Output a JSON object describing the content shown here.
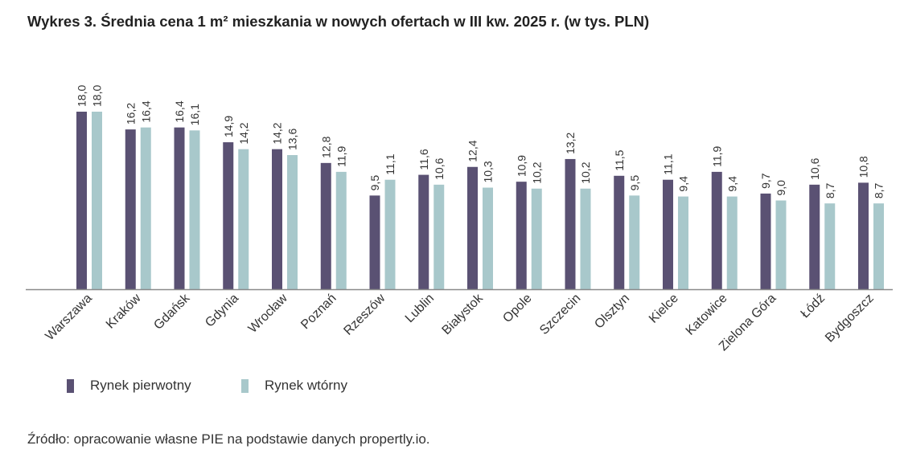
{
  "chart_data": {
    "type": "bar",
    "title": "Wykres 3.  Średnia cena 1 m² mieszkania w nowych ofertach w III kw. 2025 r. (w tys. PLN)",
    "source": "Źródło: opracowanie własne PIE na podstawie danych propertly.io.",
    "xlabel": "",
    "ylabel": "",
    "ylim": [
      0,
      18
    ],
    "grid": false,
    "legend_position": "bottom-left",
    "categories": [
      "Warszawa",
      "Kraków",
      "Gdańsk",
      "Gdynia",
      "Wrocław",
      "Poznań",
      "Rzeszów",
      "Lublin",
      "Białystok",
      "Opole",
      "Szczecin",
      "Olsztyn",
      "Kielce",
      "Katowice",
      "Zielona Góra",
      "Łódź",
      "Bydgoszcz"
    ],
    "series": [
      {
        "name": "Rynek pierwotny",
        "color": "#5a5173",
        "values": [
          18.0,
          16.2,
          16.4,
          14.9,
          14.2,
          12.8,
          9.5,
          11.6,
          12.4,
          10.9,
          13.2,
          11.5,
          11.1,
          11.9,
          9.7,
          10.6,
          10.8
        ],
        "labels": [
          "18,0",
          "16,2",
          "16,4",
          "14,9",
          "14,2",
          "12,8",
          "9,5",
          "11,6",
          "12,4",
          "10,9",
          "13,2",
          "11,5",
          "11,1",
          "11,9",
          "9,7",
          "10,6",
          "10,8"
        ]
      },
      {
        "name": "Rynek wtórny",
        "color": "#a8c8cb",
        "values": [
          18.0,
          16.4,
          16.1,
          14.2,
          13.6,
          11.9,
          11.1,
          10.6,
          10.3,
          10.2,
          10.2,
          9.5,
          9.4,
          9.4,
          9.0,
          8.7,
          8.7
        ],
        "labels": [
          "18,0",
          "16,4",
          "16,1",
          "14,2",
          "13,6",
          "11,9",
          "11,1",
          "10,6",
          "10,3",
          "10,2",
          "10,2",
          "9,5",
          "9,4",
          "9,4",
          "9,0",
          "8,7",
          "8,7"
        ]
      }
    ]
  }
}
